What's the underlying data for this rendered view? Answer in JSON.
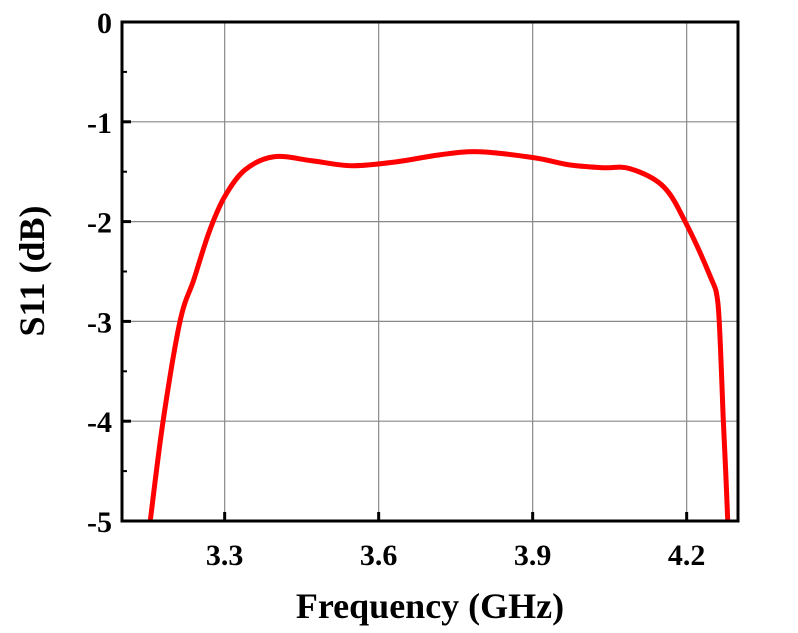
{
  "chart_data": {
    "type": "line",
    "title": "",
    "xlabel": "Frequency (GHz)",
    "ylabel": "S11 (dB)",
    "xlim": [
      3.1,
      4.3
    ],
    "ylim": [
      -5,
      0
    ],
    "xticks": [
      "3.3",
      "3.6",
      "3.9",
      "4.2"
    ],
    "xtick_values": [
      3.3,
      3.6,
      3.9,
      4.2
    ],
    "yticks": [
      "0",
      "-1",
      "-2",
      "-3",
      "-4",
      "-5"
    ],
    "ytick_values": [
      0,
      -1,
      -2,
      -3,
      -4,
      -5
    ],
    "grid": true,
    "series": [
      {
        "color": "#ff0000",
        "x": [
          3.155,
          3.18,
          3.213,
          3.24,
          3.27,
          3.3,
          3.34,
          3.396,
          3.47,
          3.548,
          3.636,
          3.72,
          3.796,
          3.903,
          3.97,
          4.036,
          4.09,
          4.155,
          4.2,
          4.246,
          4.26,
          4.266,
          4.271,
          4.276,
          4.28
        ],
        "y": [
          -5.0,
          -4.0,
          -3.0,
          -2.58,
          -2.1,
          -1.75,
          -1.48,
          -1.35,
          -1.39,
          -1.44,
          -1.4,
          -1.33,
          -1.3,
          -1.36,
          -1.43,
          -1.46,
          -1.47,
          -1.65,
          -2.03,
          -2.55,
          -2.78,
          -3.28,
          -3.95,
          -4.5,
          -5.0
        ]
      }
    ]
  }
}
